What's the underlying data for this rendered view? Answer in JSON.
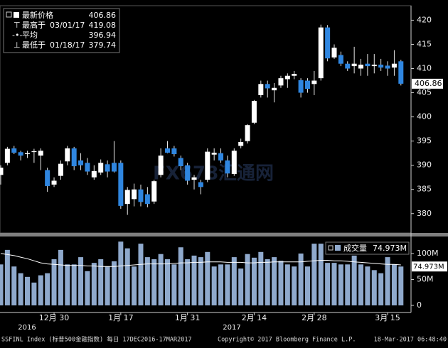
{
  "chart_data": [
    {
      "type": "candlestick",
      "open": [
        388,
        390.5,
        393.5,
        392.7,
        392.3,
        392.8,
        392,
        389,
        386,
        387.8,
        390.8,
        393.5,
        391,
        390.5,
        387.5,
        388.5,
        390.2,
        390.5,
        390.5,
        382,
        383,
        385,
        384,
        382.5,
        388,
        393.5,
        393.5,
        391.5,
        390,
        387,
        386.5,
        387,
        392.2,
        392.5,
        391,
        388.2,
        394,
        395,
        398.8,
        404.5,
        406.8,
        405.5,
        406.5,
        407.8,
        408.5,
        407.6,
        407.5,
        406.8,
        408,
        418.5,
        412.3,
        412.8,
        411,
        410.5,
        410,
        411,
        410.5,
        410.8,
        410.6,
        410.2,
        411.5
      ],
      "high": [
        390,
        393.8,
        394,
        393,
        393,
        393.4,
        393.5,
        389.5,
        387.5,
        391,
        394,
        393.8,
        392.5,
        391.5,
        390,
        391.2,
        391,
        395,
        391,
        385.5,
        386.2,
        386,
        385.5,
        387,
        393.5,
        395,
        394,
        392,
        390.5,
        388,
        387,
        393.5,
        393.5,
        393.5,
        392,
        393.5,
        395.5,
        398.5,
        403.5,
        407.5,
        407.5,
        407,
        408.5,
        409,
        409.5,
        408,
        408,
        409.5,
        419.08,
        419,
        415,
        413.5,
        411.5,
        414.5,
        412,
        413,
        413,
        412,
        411.5,
        413.8,
        411.8
      ],
      "low": [
        386,
        390,
        392.3,
        391,
        391.5,
        390.5,
        389,
        384.5,
        385.5,
        387,
        390,
        389,
        389,
        388,
        387,
        388,
        387.5,
        388.5,
        381,
        379.74,
        381.5,
        381.5,
        381.3,
        382,
        387.5,
        392.5,
        391.8,
        389,
        386,
        385,
        384,
        386.5,
        391,
        390.5,
        387.5,
        387.8,
        393.5,
        394.5,
        398.5,
        404,
        404,
        403,
        406,
        406,
        407.8,
        404,
        405,
        404.5,
        407.5,
        411.5,
        412,
        410.5,
        409.5,
        409,
        408.5,
        408.5,
        409,
        409.5,
        408.5,
        408.5,
        406.5
      ],
      "close": [
        389.5,
        393.4,
        392.6,
        392,
        392.5,
        392.9,
        393,
        385.7,
        386.8,
        390.3,
        393.5,
        389.8,
        390,
        388.7,
        388.8,
        390.5,
        388.7,
        388.7,
        381.6,
        384.9,
        385,
        382.4,
        382,
        386.7,
        392,
        392.6,
        392.3,
        389.8,
        386.8,
        387.5,
        385.5,
        392.8,
        392.6,
        391,
        388.3,
        393,
        394.8,
        398.3,
        403.3,
        406.8,
        405.9,
        406,
        408,
        408.5,
        408.9,
        405,
        405.8,
        407.5,
        418.5,
        412.1,
        414.3,
        411,
        410,
        411,
        410.8,
        410.5,
        410.8,
        410.2,
        410,
        411,
        406.86
      ],
      "up_color": "#ffffff",
      "down_color": "#2f86e0",
      "ylim": [
        376,
        423
      ],
      "yticks": [
        380,
        385,
        390,
        395,
        400,
        405,
        410,
        415,
        420
      ],
      "legend": [
        {
          "label": "最新价格",
          "value": 406.86
        },
        {
          "label": "最高于",
          "date": "03/01/17",
          "value": 419.08
        },
        {
          "label": "平均",
          "value": 396.94
        },
        {
          "label": "最低于",
          "date": "01/18/17",
          "value": 379.74
        }
      ],
      "watermark": "FX678汇通网"
    },
    {
      "type": "bar",
      "categories": [
        null,
        null,
        null,
        null,
        null,
        null,
        null,
        null,
        "12月 30",
        null,
        null,
        null,
        null,
        null,
        null,
        null,
        null,
        null,
        "1月 17",
        null,
        null,
        null,
        null,
        null,
        null,
        null,
        null,
        null,
        "1月 31",
        null,
        null,
        null,
        null,
        null,
        null,
        null,
        null,
        null,
        "2月 14",
        null,
        null,
        null,
        null,
        null,
        null,
        null,
        null,
        "2月 28",
        null,
        null,
        null,
        null,
        null,
        null,
        null,
        null,
        null,
        null,
        "3月 15",
        null,
        null
      ],
      "years": [
        "2016",
        "2017"
      ],
      "series": [
        {
          "name": "成交量",
          "color": "#8fa9cc",
          "last_value_label": "74.973M",
          "values": [
            79,
            107,
            75,
            62,
            55,
            44,
            58,
            62,
            89,
            107,
            79,
            79,
            93,
            66,
            82,
            89,
            75,
            85,
            123,
            110,
            75,
            119,
            93,
            89,
            99,
            89,
            79,
            112,
            89,
            96,
            93,
            103,
            75,
            79,
            79,
            93,
            71,
            99,
            92,
            103,
            89,
            93,
            86,
            79,
            75,
            100,
            75,
            119,
            119,
            82,
            82,
            79,
            79,
            96,
            79,
            75,
            68,
            62,
            93,
            79,
            74.973
          ]
        },
        {
          "color": "#ffffff",
          "values": [
            100,
            98,
            96,
            93,
            90,
            86,
            82,
            80,
            79,
            78,
            77,
            77,
            77,
            76,
            76,
            75,
            75,
            75,
            76,
            77,
            78,
            79,
            80,
            80,
            80,
            80,
            81,
            82,
            82,
            83,
            83,
            84,
            84,
            84,
            83,
            83,
            83,
            82,
            82,
            83,
            83,
            84,
            84,
            84,
            84,
            84,
            85,
            86,
            87,
            87,
            86,
            86,
            85,
            84,
            83,
            82,
            81,
            80,
            79,
            79,
            78
          ]
        }
      ],
      "ylim": [
        -13.7,
        130.1
      ],
      "yticks": [
        0,
        {
          "value": 50,
          "label": "50M"
        },
        {
          "value": 100,
          "label": "100M"
        }
      ]
    }
  ],
  "footer": {
    "left": "SSFINL Index (标普500金融指数) 每日 17DEC2016-17MAR2017",
    "copyright": "Copyright© 2017 Bloomberg Finance L.P.",
    "timestamp": "18-Mar-2017 06:48:40"
  }
}
